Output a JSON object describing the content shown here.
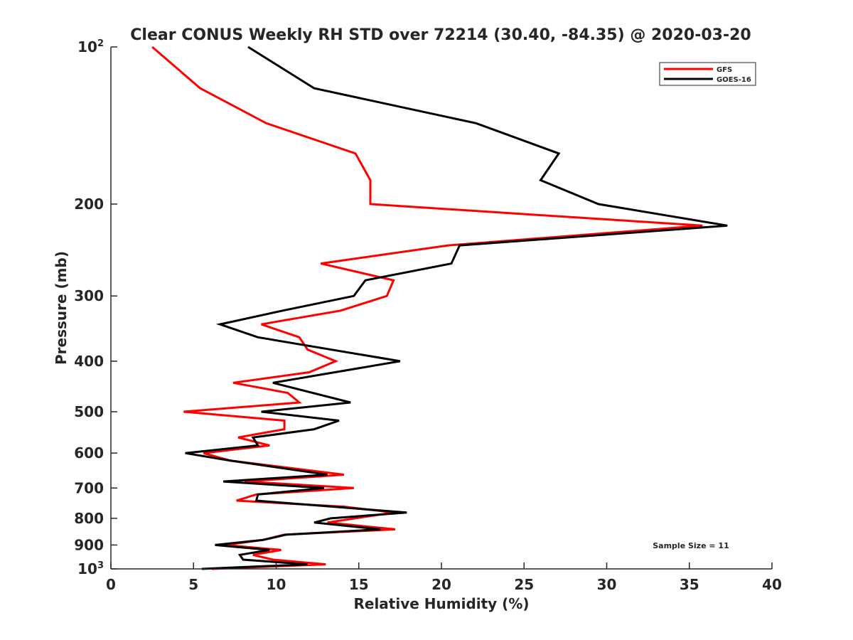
{
  "chart_data": {
    "type": "line",
    "title": "Clear CONUS Weekly RH STD over 72214 (30.40, -84.35) @ 2020-03-20",
    "xlabel": "Relative Humidity (%)",
    "ylabel": "Pressure (mb)",
    "xlim": [
      0,
      40
    ],
    "ylim": [
      100,
      1000
    ],
    "yscale": "log",
    "yreversed": true,
    "xticks": [
      "0",
      "5",
      "10",
      "15",
      "20",
      "25",
      "30",
      "35",
      "40"
    ],
    "xtick_values": [
      0,
      5,
      10,
      15,
      20,
      25,
      30,
      35,
      40
    ],
    "yticks": [
      {
        "value": 100,
        "label": "10",
        "sup": "2"
      },
      {
        "value": 200,
        "label": "200"
      },
      {
        "value": 300,
        "label": "300"
      },
      {
        "value": 400,
        "label": "400"
      },
      {
        "value": 500,
        "label": "500"
      },
      {
        "value": 600,
        "label": "600"
      },
      {
        "value": 700,
        "label": "700"
      },
      {
        "value": 800,
        "label": "800"
      },
      {
        "value": 900,
        "label": "900"
      },
      {
        "value": 1000,
        "label": "10",
        "sup": "3"
      }
    ],
    "grid": false,
    "legend_position": "top-right",
    "annotation": "Sample Size = 11",
    "series": [
      {
        "name": "GFS",
        "color": "#ff0000",
        "pressure": [
          100,
          120,
          140,
          160,
          180,
          200,
          220,
          240,
          260,
          280,
          300,
          320,
          340,
          360,
          380,
          400,
          420,
          440,
          460,
          480,
          500,
          520,
          540,
          560,
          580,
          600,
          620,
          660,
          680,
          700,
          720,
          740,
          760,
          780,
          815,
          840,
          860,
          880,
          900,
          920,
          940,
          960,
          980,
          1000
        ],
        "rh": [
          2.5,
          5.4,
          9.4,
          14.8,
          15.7,
          15.7,
          35.8,
          20.4,
          12.7,
          17.1,
          16.7,
          13.9,
          9.1,
          11.4,
          11.9,
          13.6,
          12.0,
          7.4,
          10.7,
          11.4,
          4.4,
          10.5,
          10.5,
          7.7,
          9.6,
          5.6,
          7.2,
          14.1,
          8.1,
          14.7,
          8.8,
          7.6,
          14.1,
          17.1,
          13.1,
          17.2,
          10.5,
          9.2,
          6.9,
          10.3,
          8.6,
          9.8,
          13.0,
          6.1
        ]
      },
      {
        "name": "GOES-16",
        "color": "#000000",
        "pressure": [
          100,
          120,
          140,
          160,
          180,
          200,
          220,
          240,
          260,
          280,
          300,
          320,
          340,
          360,
          400,
          440,
          480,
          500,
          520,
          540,
          560,
          580,
          600,
          620,
          660,
          680,
          700,
          720,
          740,
          780,
          800,
          815,
          840,
          860,
          880,
          900,
          920,
          940,
          960,
          980,
          1000
        ],
        "rh": [
          8.3,
          12.3,
          22.1,
          27.1,
          26.0,
          29.5,
          37.3,
          21.1,
          20.6,
          15.4,
          14.7,
          10.4,
          6.6,
          8.9,
          17.5,
          9.8,
          14.5,
          9.1,
          13.8,
          12.3,
          8.6,
          8.9,
          4.5,
          7.2,
          13.1,
          6.8,
          12.9,
          8.9,
          8.8,
          17.9,
          13.3,
          12.3,
          16.3,
          10.6,
          9.2,
          6.3,
          9.6,
          7.8,
          8.0,
          11.9,
          5.5
        ]
      }
    ]
  }
}
